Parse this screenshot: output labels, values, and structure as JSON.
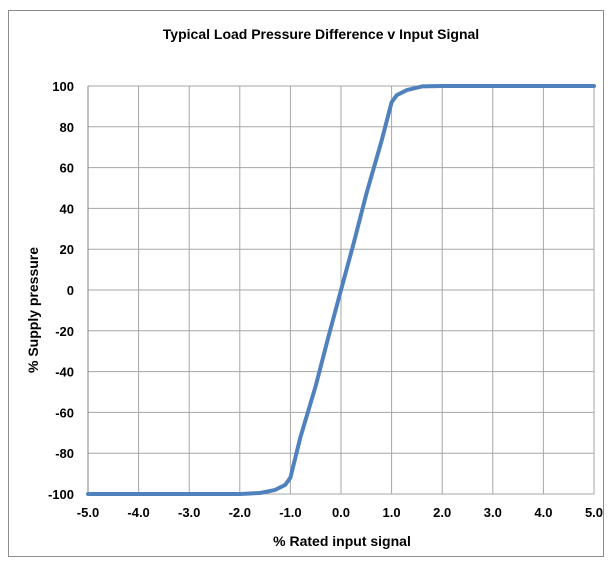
{
  "chart_data": {
    "type": "line",
    "title": "Typical Load Pressure Difference v Input Signal",
    "xlabel": "% Rated input signal",
    "ylabel": "% Supply pressure",
    "xlim": [
      -5.0,
      5.0
    ],
    "ylim": [
      -100,
      100
    ],
    "x_ticks": [
      "-5.0",
      "-4.0",
      "-3.0",
      "-2.0",
      "-1.0",
      "0.0",
      "1.0",
      "2.0",
      "3.0",
      "4.0",
      "5.0"
    ],
    "y_ticks": [
      "-100",
      "-80",
      "-60",
      "-40",
      "-20",
      "0",
      "20",
      "40",
      "60",
      "80",
      "100"
    ],
    "grid": true,
    "legend": "none",
    "series": [
      {
        "color": "#4f81bd",
        "points": [
          [
            -5.0,
            -100
          ],
          [
            -2.0,
            -100
          ],
          [
            -1.6,
            -99.5
          ],
          [
            -1.3,
            -98
          ],
          [
            -1.1,
            -95.5
          ],
          [
            -1.0,
            -92
          ],
          [
            -0.8,
            -72
          ],
          [
            -0.5,
            -47
          ],
          [
            -0.25,
            -23
          ],
          [
            0.0,
            0
          ],
          [
            0.25,
            23
          ],
          [
            0.5,
            47
          ],
          [
            0.8,
            73
          ],
          [
            1.0,
            92
          ],
          [
            1.1,
            95.5
          ],
          [
            1.3,
            98
          ],
          [
            1.6,
            99.8
          ],
          [
            2.0,
            100
          ],
          [
            5.0,
            100
          ]
        ]
      }
    ]
  }
}
